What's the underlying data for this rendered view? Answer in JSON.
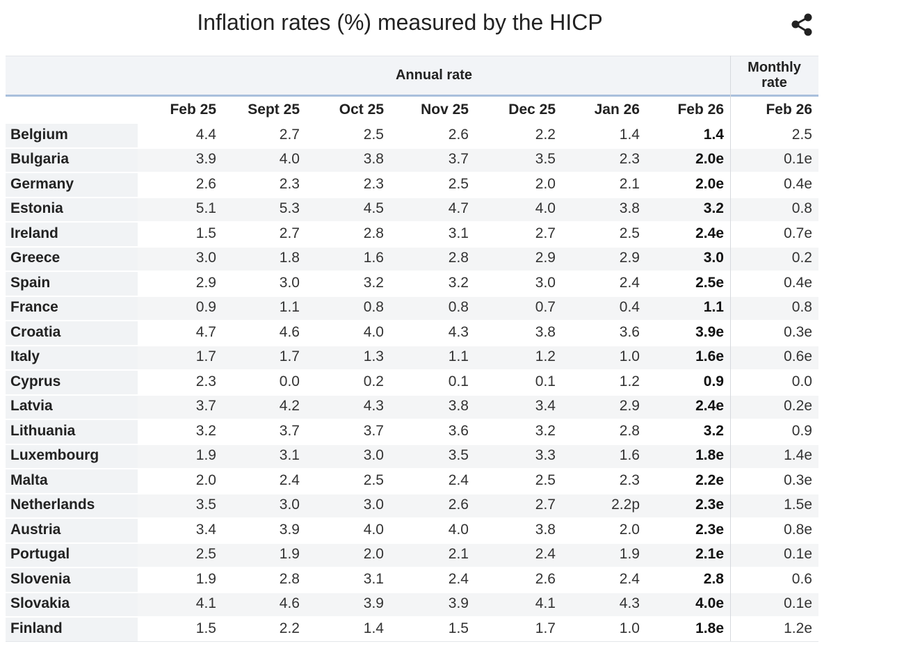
{
  "title": "Inflation rates (%) measured by the HICP",
  "table": {
    "header_groups": [
      "Annual rate",
      "Monthly rate"
    ],
    "columns": [
      "Feb 25",
      "Sept 25",
      "Oct 25",
      "Nov 25",
      "Dec 25",
      "Jan 26",
      "Feb 26",
      "Feb 26"
    ],
    "rows": [
      {
        "country": "Belgium",
        "values": [
          "4.4",
          "2.7",
          "2.5",
          "2.6",
          "2.2",
          "1.4",
          "1.4",
          "2.5"
        ]
      },
      {
        "country": "Bulgaria",
        "values": [
          "3.9",
          "4.0",
          "3.8",
          "3.7",
          "3.5",
          "2.3",
          "2.0e",
          "0.1e"
        ]
      },
      {
        "country": "Germany",
        "values": [
          "2.6",
          "2.3",
          "2.3",
          "2.5",
          "2.0",
          "2.1",
          "2.0e",
          "0.4e"
        ]
      },
      {
        "country": "Estonia",
        "values": [
          "5.1",
          "5.3",
          "4.5",
          "4.7",
          "4.0",
          "3.8",
          "3.2",
          "0.8"
        ]
      },
      {
        "country": "Ireland",
        "values": [
          "1.5",
          "2.7",
          "2.8",
          "3.1",
          "2.7",
          "2.5",
          "2.4e",
          "0.7e"
        ]
      },
      {
        "country": "Greece",
        "values": [
          "3.0",
          "1.8",
          "1.6",
          "2.8",
          "2.9",
          "2.9",
          "3.0",
          "0.2"
        ]
      },
      {
        "country": "Spain",
        "values": [
          "2.9",
          "3.0",
          "3.2",
          "3.2",
          "3.0",
          "2.4",
          "2.5e",
          "0.4e"
        ]
      },
      {
        "country": "France",
        "values": [
          "0.9",
          "1.1",
          "0.8",
          "0.8",
          "0.7",
          "0.4",
          "1.1",
          "0.8"
        ]
      },
      {
        "country": "Croatia",
        "values": [
          "4.7",
          "4.6",
          "4.0",
          "4.3",
          "3.8",
          "3.6",
          "3.9e",
          "0.3e"
        ]
      },
      {
        "country": "Italy",
        "values": [
          "1.7",
          "1.7",
          "1.3",
          "1.1",
          "1.2",
          "1.0",
          "1.6e",
          "0.6e"
        ]
      },
      {
        "country": "Cyprus",
        "values": [
          "2.3",
          "0.0",
          "0.2",
          "0.1",
          "0.1",
          "1.2",
          "0.9",
          "0.0"
        ]
      },
      {
        "country": "Latvia",
        "values": [
          "3.7",
          "4.2",
          "4.3",
          "3.8",
          "3.4",
          "2.9",
          "2.4e",
          "0.2e"
        ]
      },
      {
        "country": "Lithuania",
        "values": [
          "3.2",
          "3.7",
          "3.7",
          "3.6",
          "3.2",
          "2.8",
          "3.2",
          "0.9"
        ]
      },
      {
        "country": "Luxembourg",
        "values": [
          "1.9",
          "3.1",
          "3.0",
          "3.5",
          "3.3",
          "1.6",
          "1.8e",
          "1.4e"
        ]
      },
      {
        "country": "Malta",
        "values": [
          "2.0",
          "2.4",
          "2.5",
          "2.4",
          "2.5",
          "2.3",
          "2.2e",
          "0.3e"
        ]
      },
      {
        "country": "Netherlands",
        "values": [
          "3.5",
          "3.0",
          "3.0",
          "2.6",
          "2.7",
          "2.2p",
          "2.3e",
          "1.5e"
        ]
      },
      {
        "country": "Austria",
        "values": [
          "3.4",
          "3.9",
          "4.0",
          "4.0",
          "3.8",
          "2.0",
          "2.3e",
          "0.8e"
        ]
      },
      {
        "country": "Portugal",
        "values": [
          "2.5",
          "1.9",
          "2.0",
          "2.1",
          "2.4",
          "1.9",
          "2.1e",
          "0.1e"
        ]
      },
      {
        "country": "Slovenia",
        "values": [
          "1.9",
          "2.8",
          "3.1",
          "2.4",
          "2.6",
          "2.4",
          "2.8",
          "0.6"
        ]
      },
      {
        "country": "Slovakia",
        "values": [
          "4.1",
          "4.6",
          "3.9",
          "3.9",
          "4.1",
          "4.3",
          "4.0e",
          "0.1e"
        ]
      },
      {
        "country": "Finland",
        "values": [
          "1.5",
          "2.2",
          "1.4",
          "1.5",
          "1.7",
          "1.0",
          "1.8e",
          "1.2e"
        ]
      }
    ]
  }
}
